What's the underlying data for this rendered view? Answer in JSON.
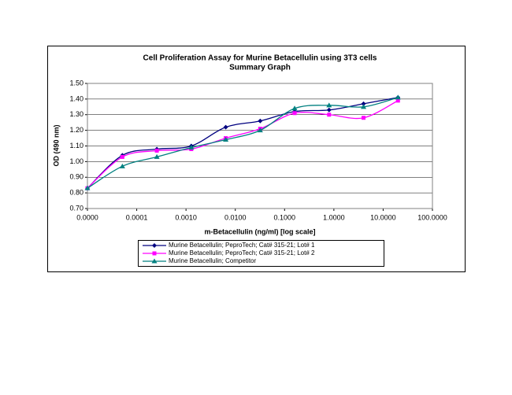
{
  "chart_data": {
    "type": "line",
    "title": "Cell Proliferation Assay for Murine Betacellulin using 3T3 cells",
    "subtitle": "Summary Graph",
    "x_label": "m-Betacellulin (ng/ml) [log scale]",
    "y_label": "OD (490 nm)",
    "x_scale": "log",
    "x": [
      1e-05,
      5.12e-05,
      0.000256,
      0.00128,
      0.0064,
      0.032,
      0.16,
      0.8,
      4,
      20
    ],
    "series": [
      {
        "name": "Murine Betacellulin; PeproTech; Cat# 315-21; Lot# 1",
        "color": "#000080",
        "marker": "diamond",
        "values": [
          0.83,
          1.04,
          1.08,
          1.1,
          1.22,
          1.26,
          1.32,
          1.33,
          1.37,
          1.41
        ]
      },
      {
        "name": "Murine Betacellulin; PeproTech; Cat# 315-21; Lot# 2",
        "color": "#ff00ff",
        "marker": "square",
        "values": [
          0.83,
          1.03,
          1.07,
          1.08,
          1.15,
          1.21,
          1.31,
          1.3,
          1.28,
          1.39
        ]
      },
      {
        "name": "Murine Betacellulin; Competitor",
        "color": "#008080",
        "marker": "triangle",
        "values": [
          0.83,
          0.97,
          1.03,
          1.09,
          1.14,
          1.2,
          1.34,
          1.36,
          1.35,
          1.41
        ]
      }
    ],
    "xlim": [
      1e-05,
      100
    ],
    "xticks": [
      {
        "value": 1e-05,
        "label": "0.0000"
      },
      {
        "value": 0.0001,
        "label": "0.0001"
      },
      {
        "value": 0.001,
        "label": "0.0010"
      },
      {
        "value": 0.01,
        "label": "0.0100"
      },
      {
        "value": 0.1,
        "label": "0.1000"
      },
      {
        "value": 1,
        "label": "1.0000"
      },
      {
        "value": 10,
        "label": "10.0000"
      },
      {
        "value": 100,
        "label": "100.0000"
      }
    ],
    "ylim": [
      0.7,
      1.5
    ],
    "yticks": [
      {
        "value": 0.7,
        "label": "0.70"
      },
      {
        "value": 0.8,
        "label": "0.80"
      },
      {
        "value": 0.9,
        "label": "0.90"
      },
      {
        "value": 1.0,
        "label": "1.00"
      },
      {
        "value": 1.1,
        "label": "1.10"
      },
      {
        "value": 1.2,
        "label": "1.20"
      },
      {
        "value": 1.3,
        "label": "1.30"
      },
      {
        "value": 1.4,
        "label": "1.40"
      },
      {
        "value": 1.5,
        "label": "1.50"
      }
    ],
    "grid": true,
    "legend_position": "bottom"
  }
}
